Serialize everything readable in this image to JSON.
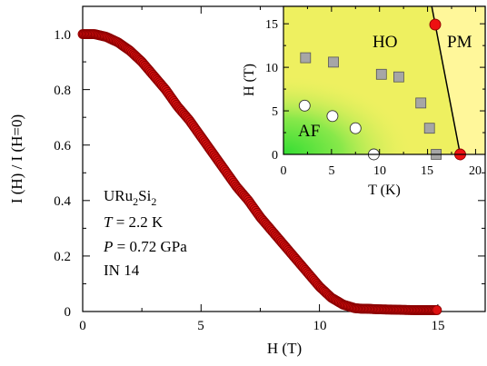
{
  "chart_data": [
    {
      "type": "scatter",
      "xlabel": "H (T)",
      "ylabel": "I (H) / I (H=0)",
      "xlim": [
        0,
        17
      ],
      "ylim": [
        0,
        1.1
      ],
      "xticks": [
        "0",
        "5",
        "10",
        "15"
      ],
      "yticks": [
        "0",
        "0.2",
        "0.4",
        "0.6",
        "0.8",
        "1.0"
      ],
      "marker_color": "#dd1111",
      "marker_edge": "#8b0000",
      "annotations": {
        "compound_base": "URu",
        "compound_sub1": "2",
        "compound_mid": "Si",
        "compound_sub2": "2",
        "temp_var": "T",
        "temp_value": " = 2.2 K",
        "pressure_var": "P",
        "pressure_value": " = 0.72 GPa",
        "instrument": "IN 14"
      },
      "series": [
        {
          "x": [
            0,
            0.5,
            1,
            1.5,
            2,
            2.5,
            3,
            3.5,
            4,
            4.5,
            5,
            5.5,
            6,
            6.5,
            7,
            7.5,
            8,
            8.5,
            9,
            9.5,
            10,
            10.5,
            11,
            11.5,
            11.8,
            12,
            12.5,
            13,
            13.5,
            14,
            14.5,
            15
          ],
          "y": [
            1.0,
            1.0,
            0.99,
            0.97,
            0.94,
            0.9,
            0.85,
            0.8,
            0.74,
            0.69,
            0.63,
            0.57,
            0.51,
            0.45,
            0.4,
            0.34,
            0.29,
            0.24,
            0.19,
            0.14,
            0.09,
            0.05,
            0.025,
            0.012,
            0.01,
            0.01,
            0.008,
            0.007,
            0.006,
            0.005,
            0.005,
            0.005
          ]
        }
      ]
    },
    {
      "type": "scatter",
      "xlabel": "T (K)",
      "ylabel": "H (T)",
      "xlim": [
        0,
        21
      ],
      "ylim": [
        0,
        17
      ],
      "xticks": [
        "0",
        "5",
        "10",
        "15",
        "20"
      ],
      "yticks": [
        "0",
        "5",
        "10",
        "15"
      ],
      "region_labels": {
        "ho": "HO",
        "pm": "PM",
        "af": "AF"
      },
      "colors": {
        "pm_fill": "#fff79a",
        "ho_fill": "#eef060",
        "af_fill": "#33dd33",
        "square": "#a6a6a6",
        "red_dot": "#ee1111"
      },
      "series": [
        {
          "marker": "square",
          "x": [
            2.3,
            5.2,
            10.2,
            12,
            14.3,
            15.2,
            15.9
          ],
          "y": [
            11.1,
            10.6,
            9.2,
            8.9,
            5.9,
            3,
            0
          ]
        },
        {
          "marker": "circle-open",
          "x": [
            2.2,
            5.1,
            7.5,
            9.4
          ],
          "y": [
            5.6,
            4.4,
            3,
            0
          ]
        },
        {
          "marker": "circle-red",
          "x": [
            15.8,
            18.4
          ],
          "y": [
            14.9,
            0
          ]
        }
      ],
      "boundary_line": {
        "x": [
          15.8,
          18.4
        ],
        "y": [
          14.9,
          0
        ]
      }
    }
  ]
}
